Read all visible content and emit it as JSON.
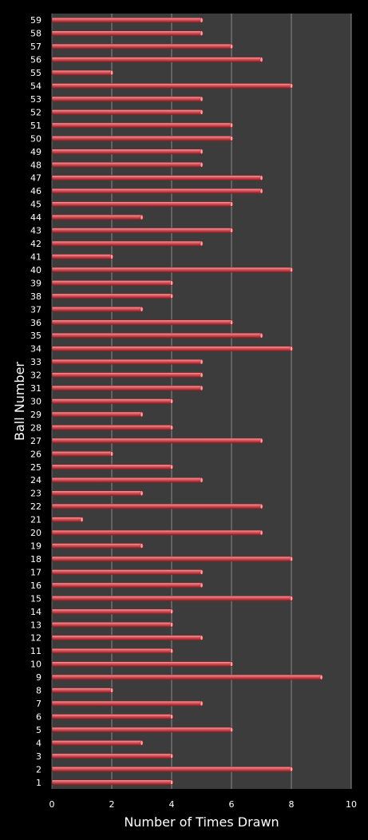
{
  "colors": {
    "background": "#000000",
    "plot_area": "#3c3c3c",
    "gridline": "#8a8a8a",
    "bar_fill": "#d9535a",
    "bar_highlight": "#f4a3a6",
    "bar_edge": "#8a1f24",
    "text": "#ffffff"
  },
  "chart_data": {
    "type": "bar",
    "orientation": "horizontal",
    "title": "",
    "xlabel": "Number of Times Drawn",
    "ylabel": "Ball Number",
    "xlim": [
      0,
      10
    ],
    "x_ticks": [
      0,
      2,
      4,
      6,
      8,
      10
    ],
    "grid": true,
    "legend": "none",
    "categories": [
      "1",
      "2",
      "3",
      "4",
      "5",
      "6",
      "7",
      "8",
      "9",
      "10",
      "11",
      "12",
      "13",
      "14",
      "15",
      "16",
      "17",
      "18",
      "19",
      "20",
      "21",
      "22",
      "23",
      "24",
      "25",
      "26",
      "27",
      "28",
      "29",
      "30",
      "31",
      "32",
      "33",
      "34",
      "35",
      "36",
      "37",
      "38",
      "39",
      "40",
      "41",
      "42",
      "43",
      "44",
      "45",
      "46",
      "47",
      "48",
      "49",
      "50",
      "51",
      "52",
      "53",
      "54",
      "55",
      "56",
      "57",
      "58",
      "59"
    ],
    "values": [
      4,
      8,
      4,
      3,
      6,
      4,
      5,
      2,
      9,
      6,
      4,
      5,
      4,
      4,
      8,
      5,
      5,
      8,
      3,
      7,
      1,
      7,
      3,
      5,
      4,
      2,
      7,
      4,
      3,
      4,
      5,
      5,
      5,
      8,
      7,
      6,
      3,
      4,
      4,
      8,
      2,
      5,
      6,
      3,
      6,
      7,
      7,
      5,
      5,
      6,
      6,
      5,
      5,
      8,
      2,
      7,
      6,
      5,
      5
    ]
  }
}
